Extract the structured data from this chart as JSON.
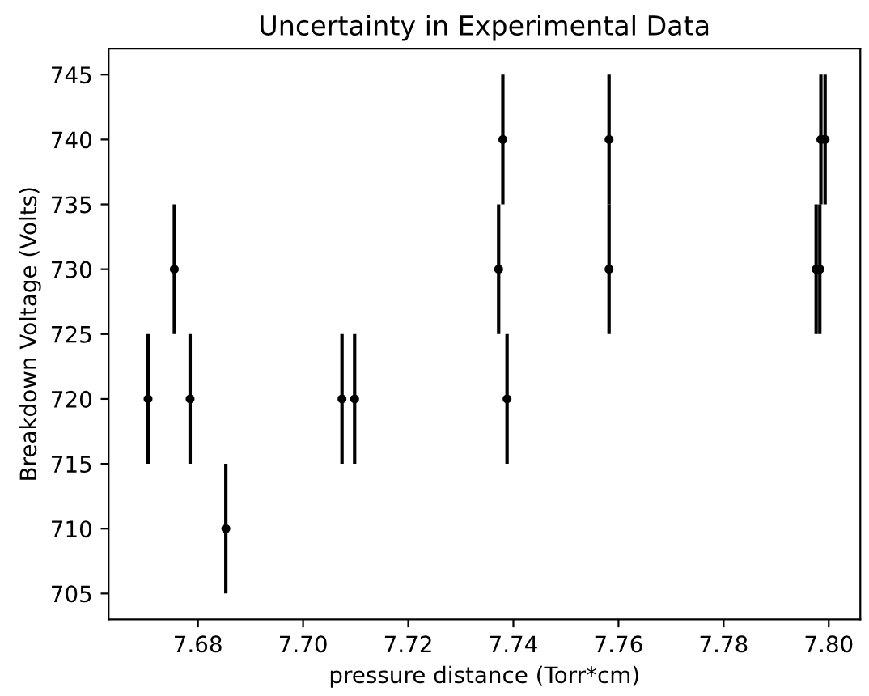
{
  "chart_data": {
    "type": "scatter",
    "title": "Uncertainty in Experimental Data",
    "xlabel": "pressure distance (Torr*cm)",
    "ylabel": "Breakdown Voltage (Volts)",
    "x": [
      7.6705,
      7.6755,
      7.6785,
      7.6853,
      7.7074,
      7.7098,
      7.7372,
      7.738,
      7.7388,
      7.7582,
      7.7582,
      7.7976,
      7.7983,
      7.7985,
      7.7993
    ],
    "series": [
      {
        "color": "#000000",
        "values": [
          720,
          730,
          720,
          710,
          720,
          720,
          730,
          740,
          720,
          740,
          730,
          730,
          730,
          740,
          740
        ],
        "errors": [
          5,
          5,
          5,
          5,
          5,
          5,
          5,
          5,
          5,
          5,
          5,
          5,
          5,
          5,
          5
        ]
      }
    ],
    "xlim": [
      7.663,
      7.806
    ],
    "ylim": [
      703,
      747
    ],
    "xticks": [
      7.68,
      {
        "value": 7.7,
        "label": "7.70"
      },
      7.72,
      7.74,
      7.76,
      7.78,
      {
        "value": 7.8,
        "label": "7.80"
      }
    ],
    "yticks": [
      705,
      710,
      715,
      720,
      725,
      730,
      735,
      740,
      745
    ],
    "marker": "circle",
    "grid": false,
    "legend": false
  }
}
